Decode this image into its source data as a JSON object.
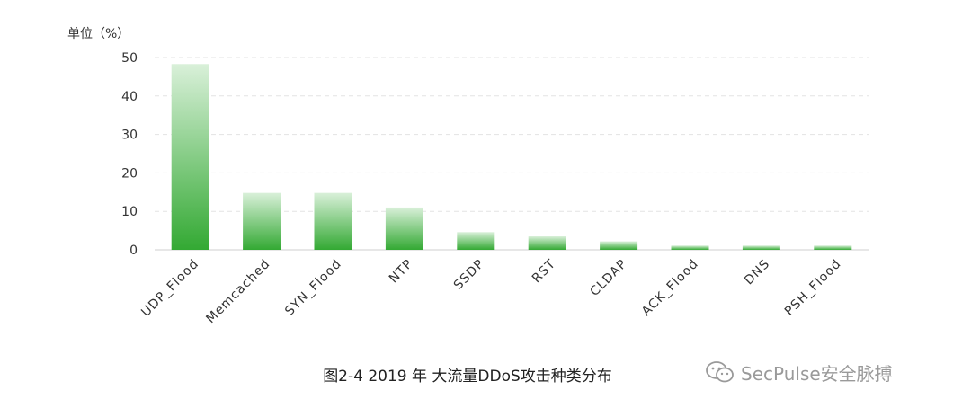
{
  "chart_data": {
    "type": "bar",
    "unit_label": "单位（%）",
    "categories": [
      "UDP_Flood",
      "Memcached",
      "SYN_Flood",
      "NTP",
      "SSDP",
      "RST",
      "CLDAP",
      "ACK_Flood",
      "DNS",
      "PSH_Flood"
    ],
    "values": [
      48.3,
      14.8,
      14.8,
      11.0,
      4.6,
      3.5,
      2.2,
      1.1,
      1.1,
      1.1
    ],
    "ylim": [
      0,
      50
    ],
    "yticks": [
      0,
      10,
      20,
      30,
      40,
      50
    ],
    "grid": true,
    "bar_color_top": "#d9f0d9",
    "bar_color_bottom": "#33a933",
    "caption": "图2-4  2019 年 大流量DDoS攻击种类分布"
  },
  "watermark": {
    "icon": "wechat-icon",
    "text": "SecPulse安全脉搏"
  }
}
